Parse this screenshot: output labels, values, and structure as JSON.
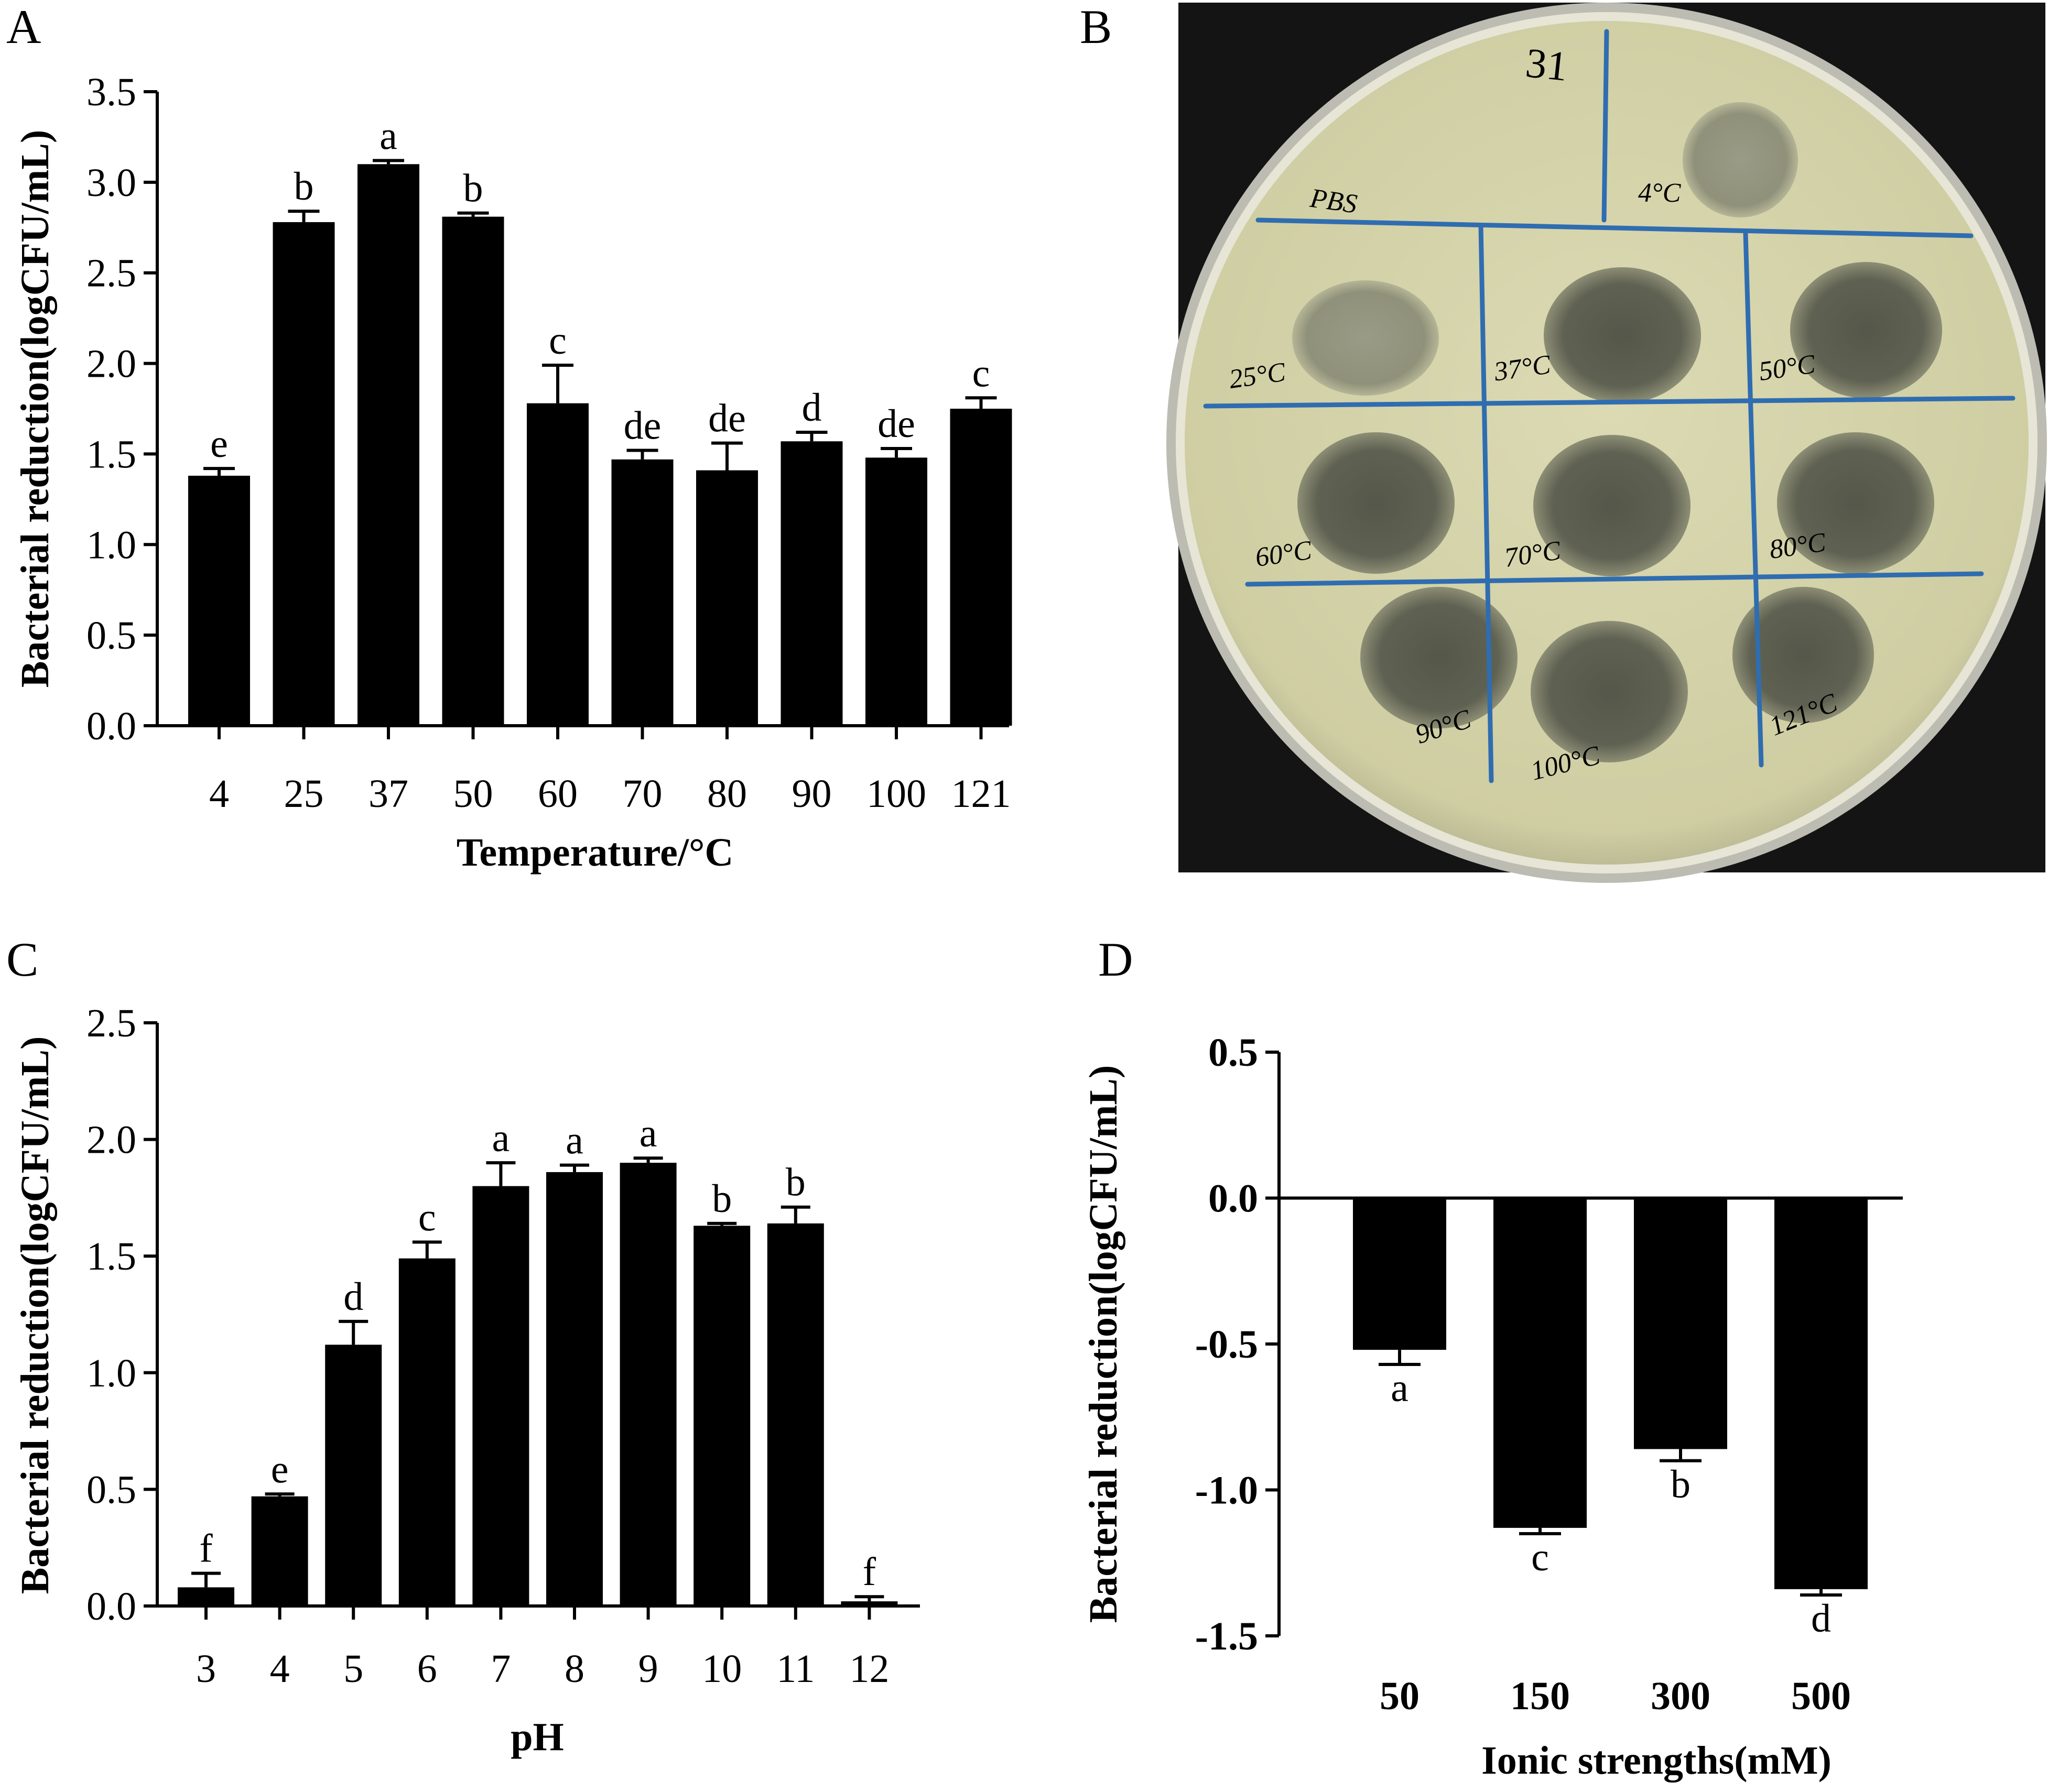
{
  "panels": {
    "A": "A",
    "B": "B",
    "C": "C",
    "D": "D"
  },
  "chart_data": [
    {
      "panel": "A",
      "type": "bar",
      "xlabel": "Temperature/°C",
      "ylabel": "Bacterial reduction(logCFU/mL)",
      "ylim": [
        0,
        3.5
      ],
      "yticks": [
        "0.0",
        "0.5",
        "1.0",
        "1.5",
        "2.0",
        "2.5",
        "3.0",
        "3.5"
      ],
      "categories": [
        "4",
        "25",
        "37",
        "50",
        "60",
        "70",
        "80",
        "90",
        "100",
        "121"
      ],
      "values": [
        1.38,
        2.78,
        3.1,
        2.81,
        1.78,
        1.47,
        1.41,
        1.57,
        1.48,
        1.75
      ],
      "errors": [
        0.04,
        0.06,
        0.02,
        0.02,
        0.21,
        0.05,
        0.15,
        0.05,
        0.05,
        0.06
      ],
      "labels": [
        "e",
        "b",
        "a",
        "b",
        "c",
        "de",
        "de",
        "d",
        "de",
        "c"
      ],
      "bar_color": "#000000"
    },
    {
      "panel": "C",
      "type": "bar",
      "xlabel": "pH",
      "ylabel": "Bacterial reduction(logCFU/mL)",
      "ylim": [
        0,
        2.5
      ],
      "yticks": [
        "0.0",
        "0.5",
        "1.0",
        "1.5",
        "2.0",
        "2.5"
      ],
      "categories": [
        "3",
        "4",
        "5",
        "6",
        "7",
        "8",
        "9",
        "10",
        "11",
        "12"
      ],
      "values": [
        0.08,
        0.47,
        1.12,
        1.49,
        1.8,
        1.86,
        1.9,
        1.63,
        1.64,
        0.02
      ],
      "errors": [
        0.06,
        0.01,
        0.1,
        0.07,
        0.1,
        0.03,
        0.02,
        0.01,
        0.07,
        0.02
      ],
      "labels": [
        "f",
        "e",
        "d",
        "c",
        "a",
        "a",
        "a",
        "b",
        "b",
        "f"
      ],
      "bar_color": "#000000"
    },
    {
      "panel": "D",
      "type": "bar",
      "xlabel": "Ionic strengths(mM)",
      "ylabel": "Bacterial reduction(logCFU/mL)",
      "ylim": [
        -1.5,
        0.5
      ],
      "yticks": [
        "-1.5",
        "-1.0",
        "-0.5",
        "0.0",
        "0.5"
      ],
      "categories": [
        "50",
        "150",
        "300",
        "500"
      ],
      "values": [
        -0.52,
        -1.13,
        -0.86,
        -1.34
      ],
      "errors": [
        0.05,
        0.02,
        0.04,
        0.02
      ],
      "labels": [
        "a",
        "c",
        "b",
        "d"
      ],
      "bar_color": "#000000"
    }
  ],
  "plate": {
    "top_label": "31",
    "sectors": [
      "PBS",
      "4°C",
      "25°C",
      "37°C",
      "50°C",
      "60°C",
      "70°C",
      "80°C",
      "90°C",
      "100°C",
      "121°C"
    ],
    "colors": {
      "background": "#141414",
      "agar": "#d9d7ae",
      "plaque": "#5f6150",
      "ink": "#2f6db0",
      "marker": "#222222"
    }
  }
}
